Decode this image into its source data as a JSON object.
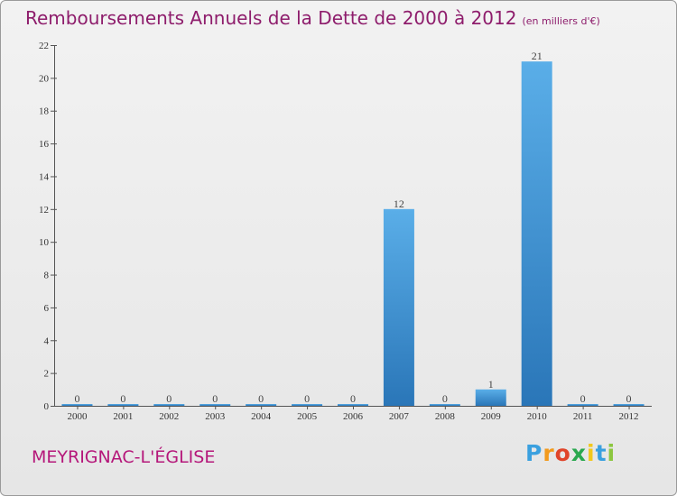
{
  "title": "Remboursements Annuels de la Dette de 2000 à 2012",
  "subtitle": "(en milliers d'€)",
  "town": "MEYRIGNAC-L'ÉGLISE",
  "logo": {
    "letters": [
      "P",
      "r",
      "o",
      "x",
      "i",
      "t",
      "i"
    ],
    "colors": [
      "#3aa0df",
      "#f29a1d",
      "#e0452a",
      "#2aa84f",
      "#f2c81d",
      "#3aa0df",
      "#8cc63f"
    ]
  },
  "colors": {
    "bar_light": "#5aaee8",
    "bar_dark": "#2a76b8",
    "title": "#8e1d6c"
  },
  "chart_data": {
    "type": "bar",
    "title": "Remboursements Annuels de la Dette de 2000 à 2012",
    "subtitle": "(en milliers d'€)",
    "categories": [
      "2000",
      "2001",
      "2002",
      "2003",
      "2004",
      "2005",
      "2006",
      "2007",
      "2008",
      "2009",
      "2010",
      "2011",
      "2012"
    ],
    "values": [
      0,
      0,
      0,
      0,
      0,
      0,
      0,
      12,
      0,
      1,
      21,
      0,
      0
    ],
    "ylim": [
      0,
      22
    ],
    "yticks": [
      0,
      2,
      4,
      6,
      8,
      10,
      12,
      14,
      16,
      18,
      20,
      22
    ],
    "grid": false,
    "legend": "none"
  }
}
